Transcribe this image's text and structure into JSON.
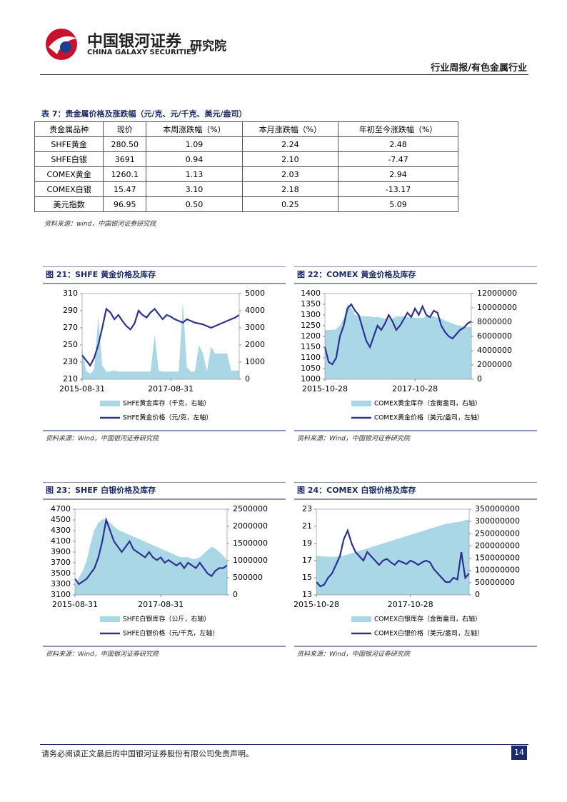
{
  "header": {
    "brand": "中国银河证券",
    "brand_en": "CHINA GALAXY SECURITIES",
    "unit": "研究院",
    "section": "行业周报/有色金属行业"
  },
  "table": {
    "title": "表 7：贵金属价格及涨跌幅（元/克、元/千克、美元/盎司）",
    "columns": [
      "贵金属品种",
      "现价",
      "本周涨跌幅（%）",
      "本月涨跌幅（%）",
      "年初至今涨跌幅（%）"
    ],
    "rows": [
      [
        "SHFE黄金",
        "280.50",
        "1.09",
        "2.24",
        "2.48"
      ],
      [
        "SHFE白银",
        "3691",
        "0.94",
        "2.10",
        "-7.47"
      ],
      [
        "COMEX黄金",
        "1260.1",
        "1.13",
        "2.03",
        "2.94"
      ],
      [
        "COMEX白银",
        "15.47",
        "3.10",
        "2.18",
        "-13.17"
      ],
      [
        "美元指数",
        "96.95",
        "0.50",
        "0.25",
        "5.09"
      ]
    ],
    "source": "资料来源：wind，中国银河证券研究院"
  },
  "chart_data": [
    {
      "type": "line",
      "title": "图 21：SHFE 黄金价格及库存",
      "source": "资料来源：Wind，中国银河证券研究院",
      "xlim": [
        0,
        39
      ],
      "xticks": [
        {
          "value": 0,
          "label": "2015-08-31"
        },
        {
          "value": 22,
          "label": "2017-08-31"
        }
      ],
      "ylim": [
        210,
        310
      ],
      "yticks": [
        210,
        230,
        250,
        270,
        290,
        310
      ],
      "y2lim": [
        0,
        5000
      ],
      "y2ticks": [
        0,
        1000,
        2000,
        3000,
        4000,
        5000
      ],
      "series": [
        {
          "name": "SHFE黄金库存（千克，右轴）",
          "color": "#a9d7e6",
          "axis": "y2",
          "kind": "area",
          "values": [
            1800,
            500,
            300,
            600,
            3600,
            800,
            450,
            450,
            500,
            450,
            450,
            450,
            450,
            450,
            450,
            450,
            450,
            450,
            2600,
            500,
            450,
            450,
            450,
            450,
            450,
            4500,
            700,
            450,
            450,
            2000,
            1500,
            450,
            1900,
            1500,
            1500,
            1500,
            1500,
            500,
            500,
            500
          ]
        },
        {
          "name": "SHFE黄金价格（元/克，左轴）",
          "color": "#2e3192",
          "kind": "line",
          "values": [
            238,
            232,
            226,
            235,
            250,
            270,
            292,
            288,
            280,
            285,
            278,
            272,
            268,
            275,
            290,
            285,
            282,
            288,
            292,
            286,
            280,
            285,
            283,
            280,
            278,
            276,
            280,
            278,
            276,
            275,
            274,
            272,
            270,
            272,
            274,
            276,
            278,
            280,
            282,
            285
          ]
        }
      ]
    },
    {
      "type": "line",
      "title": "图 22：COMEX 黄金价格及库存",
      "source": "资料来源：Wind，中国银河证券研究院",
      "xlim": [
        0,
        39
      ],
      "xticks": [
        {
          "value": 0,
          "label": "2015-10-28"
        },
        {
          "value": 24,
          "label": "2017-10-28"
        }
      ],
      "ylim": [
        1000,
        1400
      ],
      "yticks": [
        1000,
        1050,
        1100,
        1150,
        1200,
        1250,
        1300,
        1350,
        1400
      ],
      "y2lim": [
        0,
        12000000
      ],
      "y2ticks": [
        0,
        2000000,
        4000000,
        6000000,
        8000000,
        10000000,
        12000000
      ],
      "series": [
        {
          "name": "COMEX黄金库存（金衡盎司，右轴）",
          "color": "#a9d7e6",
          "axis": "y2",
          "kind": "area",
          "values": [
            6900000,
            6900000,
            6900000,
            7000000,
            7500000,
            8500000,
            10500000,
            10000000,
            9000000,
            9000000,
            8800000,
            8800000,
            8800000,
            8700000,
            8700000,
            8600000,
            8500000,
            8500000,
            8500000,
            8800000,
            8800000,
            8800000,
            8700000,
            8600000,
            8600000,
            8600000,
            8600000,
            8800000,
            8800000,
            8800000,
            8600000,
            8500000,
            8200000,
            8000000,
            7800000,
            7600000,
            7500000,
            7400000,
            7300000,
            7300000
          ]
        },
        {
          "name": "COMEX黄金价格（美元/盎司，左轴）",
          "color": "#2e3192",
          "kind": "line",
          "values": [
            1150,
            1080,
            1070,
            1100,
            1200,
            1250,
            1330,
            1350,
            1320,
            1300,
            1240,
            1180,
            1150,
            1200,
            1250,
            1230,
            1260,
            1300,
            1270,
            1230,
            1250,
            1280,
            1310,
            1290,
            1330,
            1300,
            1340,
            1300,
            1290,
            1320,
            1310,
            1250,
            1220,
            1200,
            1190,
            1210,
            1230,
            1240,
            1260,
            1270
          ]
        }
      ]
    },
    {
      "type": "line",
      "title": "图 23：SHEF 白银价格及库存",
      "source": "资料来源：Wind，中国银河证券研究院",
      "xlim": [
        0,
        39
      ],
      "xticks": [
        {
          "value": 0,
          "label": "2015-08-31"
        },
        {
          "value": 22,
          "label": "2017-08-31"
        }
      ],
      "ylim": [
        3100,
        4700
      ],
      "yticks": [
        3100,
        3300,
        3500,
        3700,
        3900,
        4100,
        4300,
        4500,
        4700
      ],
      "y2lim": [
        0,
        2500000
      ],
      "y2ticks": [
        0,
        500000,
        1000000,
        1500000,
        2000000,
        2500000
      ],
      "series": [
        {
          "name": "SHFE白银库存（公斤，右轴）",
          "color": "#a9d7e6",
          "axis": "y2",
          "kind": "area",
          "values": [
            300000,
            500000,
            700000,
            1000000,
            1500000,
            1900000,
            2100000,
            2200000,
            2200000,
            2100000,
            2000000,
            1900000,
            1850000,
            1800000,
            1750000,
            1700000,
            1650000,
            1600000,
            1550000,
            1500000,
            1450000,
            1400000,
            1350000,
            1300000,
            1250000,
            1200000,
            1150000,
            1100000,
            1100000,
            1100000,
            1050000,
            1050000,
            1100000,
            1200000,
            1300000,
            1400000,
            1350000,
            1250000,
            1150000,
            1000000
          ]
        },
        {
          "name": "SHFE白银价格（元/千克，左轴）",
          "color": "#2e3192",
          "kind": "line",
          "values": [
            3400,
            3300,
            3350,
            3400,
            3500,
            3600,
            3800,
            4100,
            4500,
            4300,
            4100,
            4000,
            3900,
            4000,
            4100,
            3950,
            3900,
            3850,
            3800,
            3900,
            3800,
            3750,
            3800,
            3700,
            3750,
            3700,
            3650,
            3700,
            3600,
            3700,
            3650,
            3600,
            3700,
            3600,
            3500,
            3450,
            3550,
            3600,
            3600,
            3650
          ]
        }
      ]
    },
    {
      "type": "line",
      "title": "图 24：COMEX 白银价格及库存",
      "source": "资料来源：Wind，中国银河证券研究院",
      "xlim": [
        0,
        39
      ],
      "xticks": [
        {
          "value": 0,
          "label": "2015-10-28"
        },
        {
          "value": 24,
          "label": "2017-10-28"
        }
      ],
      "ylim": [
        13,
        23
      ],
      "yticks": [
        13,
        15,
        17,
        19,
        21,
        23
      ],
      "y2lim": [
        0,
        350000000
      ],
      "y2ticks": [
        0,
        50000000,
        100000000,
        150000000,
        200000000,
        250000000,
        300000000,
        350000000
      ],
      "series": [
        {
          "name": "COMEX白银库存（金衡盎司，右轴）",
          "color": "#a9d7e6",
          "axis": "y2",
          "kind": "area",
          "values": [
            160000000,
            158000000,
            157000000,
            156000000,
            155000000,
            156000000,
            158000000,
            160000000,
            165000000,
            170000000,
            175000000,
            180000000,
            185000000,
            190000000,
            195000000,
            200000000,
            205000000,
            210000000,
            215000000,
            220000000,
            225000000,
            230000000,
            235000000,
            240000000,
            245000000,
            250000000,
            255000000,
            260000000,
            265000000,
            270000000,
            275000000,
            280000000,
            285000000,
            290000000,
            292000000,
            295000000,
            298000000,
            300000000,
            305000000,
            308000000
          ]
        },
        {
          "name": "COMEX白银价格（美元/盎司，左轴）",
          "color": "#2e3192",
          "kind": "line",
          "values": [
            14.5,
            14,
            14.2,
            15,
            15.5,
            16.5,
            17.5,
            19.5,
            20.5,
            19,
            18,
            17.5,
            17,
            18,
            17.5,
            17,
            16.5,
            17,
            17.2,
            16.8,
            16.5,
            17,
            16.8,
            16.6,
            17,
            16.8,
            16.5,
            16.8,
            17,
            16.8,
            16,
            15.5,
            15,
            14.5,
            14.5,
            15,
            14.8,
            18,
            15,
            15.5
          ]
        }
      ]
    }
  ],
  "footer": {
    "disclaimer": "请务必阅读正文最后的中国银河证券股份有限公司免责声明。",
    "page": "14"
  }
}
